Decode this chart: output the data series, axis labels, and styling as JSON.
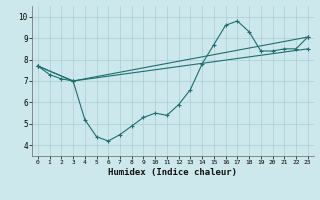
{
  "xlabel": "Humidex (Indice chaleur)",
  "xlim": [
    -0.5,
    23.5
  ],
  "ylim": [
    3.5,
    10.5
  ],
  "xticks": [
    0,
    1,
    2,
    3,
    4,
    5,
    6,
    7,
    8,
    9,
    10,
    11,
    12,
    13,
    14,
    15,
    16,
    17,
    18,
    19,
    20,
    21,
    22,
    23
  ],
  "yticks": [
    4,
    5,
    6,
    7,
    8,
    9,
    10
  ],
  "bg_color": "#cce8ec",
  "line_color": "#1e6e6e",
  "grid_color": "#aacdd4",
  "line1_x": [
    0,
    1,
    2,
    3,
    4,
    5,
    6,
    7,
    8,
    9,
    10,
    11,
    12,
    13,
    14,
    15,
    16,
    17,
    18,
    19,
    20,
    21,
    22,
    23
  ],
  "line1_y": [
    7.7,
    7.3,
    7.1,
    7.0,
    5.2,
    4.4,
    4.2,
    4.5,
    4.9,
    5.3,
    5.5,
    5.4,
    5.9,
    6.6,
    7.8,
    8.7,
    9.6,
    9.8,
    9.3,
    8.4,
    8.4,
    8.5,
    8.5,
    9.05
  ],
  "line2_x": [
    0,
    3,
    23
  ],
  "line2_y": [
    7.7,
    7.0,
    9.05
  ],
  "line3_x": [
    0,
    3,
    23
  ],
  "line3_y": [
    7.7,
    7.0,
    8.5
  ],
  "xtick_labels": [
    "0",
    "1",
    "2",
    "3",
    "4",
    "5",
    "6",
    "7",
    "8",
    "9",
    "10",
    "11",
    "12",
    "13",
    "14",
    "15",
    "16",
    "17",
    "18",
    "19",
    "20",
    "21",
    "22",
    "23"
  ]
}
